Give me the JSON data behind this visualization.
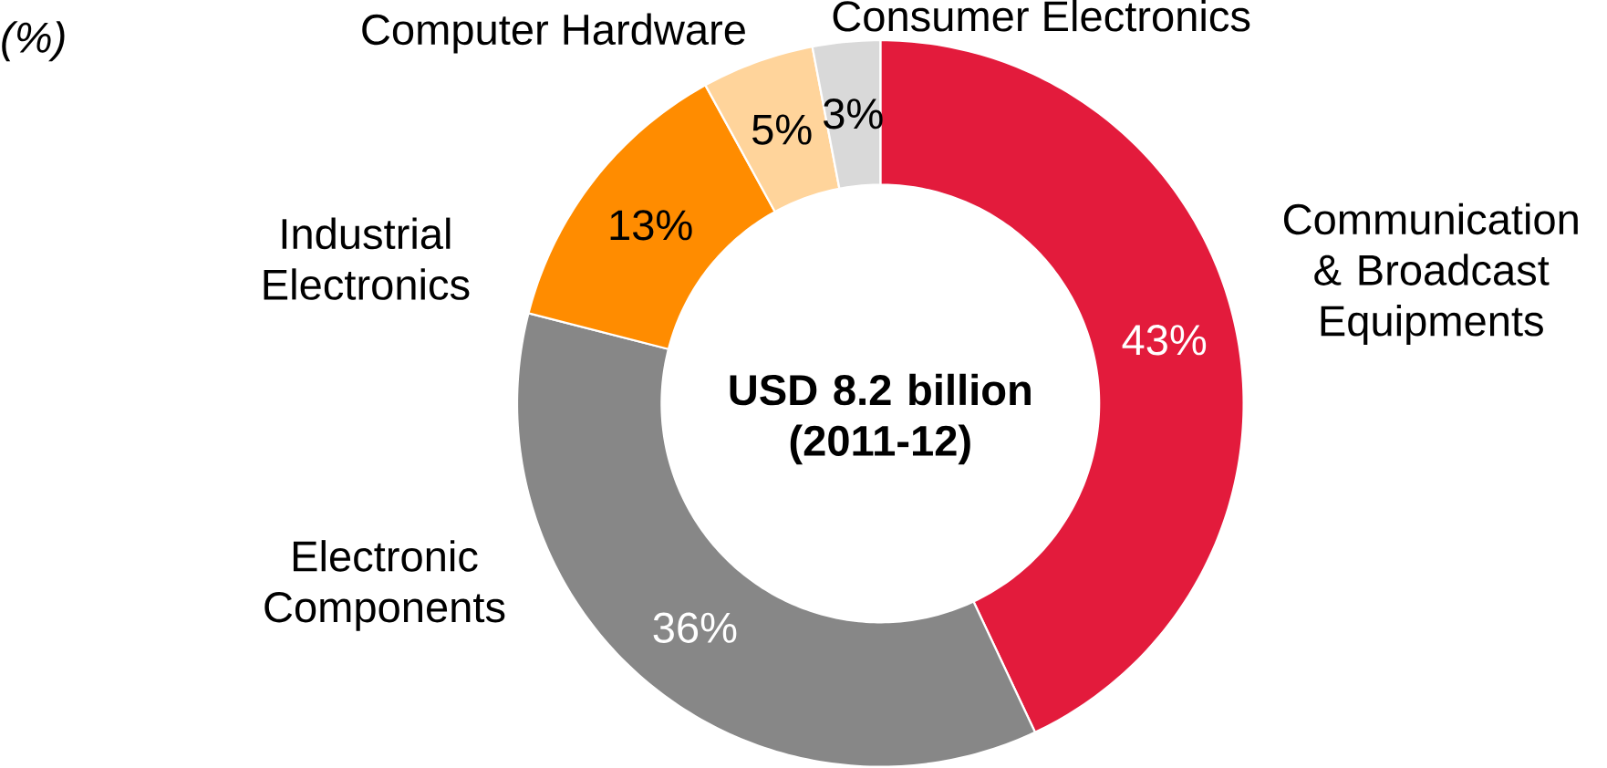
{
  "chart_data": {
    "type": "donut",
    "title": "USD 8.2 billion (2011-12)",
    "subtitle": "(%)",
    "categories": [
      "Communication & Broadcast Equipments",
      "Electronic Components",
      "Industrial Electronics",
      "Computer Hardware",
      "Consumer Electronics"
    ],
    "values": [
      43,
      36,
      13,
      5,
      3
    ],
    "value_labels": [
      "43%",
      "36%",
      "13%",
      "5%",
      "3%"
    ],
    "colors": [
      "#e31b3c",
      "#878787",
      "#ff8c00",
      "#ffd49b",
      "#d9d9d9"
    ]
  }
}
